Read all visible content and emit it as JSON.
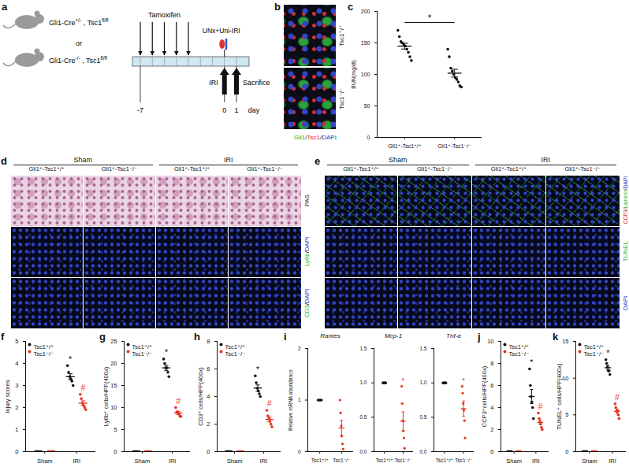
{
  "schematic": {
    "panel": "a",
    "genotypes": [
      [
        {
          "text": "Gli1-Cre"
        },
        {
          "text": "+/-",
          "sup": true
        },
        {
          "text": " , Tsc1"
        },
        {
          "text": "fl/fl",
          "sup": true
        }
      ],
      [
        {
          "text": "Gli1-Cre"
        },
        {
          "text": "-/-",
          "sup": true
        },
        {
          "text": " , Tsc1"
        },
        {
          "text": "fl/fl",
          "sup": true
        }
      ]
    ],
    "or": "or",
    "treatment": "Tamoxifen",
    "surgery": "UNx+Uni-IRI",
    "events": [
      {
        "label": "IRI",
        "day": 0
      },
      {
        "label": "Sacrifice",
        "day": 1
      }
    ],
    "day_ticks": [
      -7,
      0,
      1
    ],
    "day_label": "day"
  },
  "costain": {
    "panel": "b",
    "rows": [
      "Tsc1⁺/⁺",
      "Tsc1⁻/⁻"
    ],
    "stain": [
      {
        "text": "Gli1",
        "color": "#22b322"
      },
      {
        "text": "/",
        "color": "#222222"
      },
      {
        "text": "Tsc1",
        "color": "#e02020"
      },
      {
        "text": "/",
        "color": "#222222"
      },
      {
        "text": "DAPI",
        "color": "#2036c8"
      }
    ]
  },
  "micrographs": [
    {
      "panel": "d",
      "groups": [
        "Sham",
        "IRI"
      ],
      "columns": [
        "Gli1⁺-Tsc1⁺/⁺",
        "Gli1⁺-Tsc1⁻/⁻",
        "Gli1⁺-Tsc1⁺/⁺",
        "Gli1⁺-Tsc1⁻/⁻"
      ],
      "rows": [
        [
          {
            "text": "PAS",
            "color": "#222222"
          }
        ],
        [
          {
            "text": "Ly6b",
            "color": "#22b322"
          },
          {
            "text": "/",
            "color": "#222222"
          },
          {
            "text": "DAPI",
            "color": "#2036c8"
          }
        ],
        [
          {
            "text": "CD3",
            "color": "#22b322"
          },
          {
            "text": "/",
            "color": "#222222"
          },
          {
            "text": "DAPI",
            "color": "#2036c8"
          }
        ]
      ]
    },
    {
      "panel": "e",
      "groups": [
        "Sham",
        "IRI"
      ],
      "columns": [
        "Gli1⁺-Tsc1⁺/⁺",
        "Gli1⁺-Tsc1⁻/⁻",
        "Gli1⁺-Tsc1⁺/⁺",
        "Gli1⁺-Tsc1⁻/⁻"
      ],
      "rows": [
        [
          {
            "text": "CCP3",
            "color": "#e02020"
          },
          {
            "text": "/",
            "color": "#222222"
          },
          {
            "text": "Laminin",
            "color": "#22b322"
          },
          {
            "text": "/",
            "color": "#222222"
          },
          {
            "text": "DAPI",
            "color": "#2036c8"
          }
        ],
        [
          {
            "text": "TUNEL",
            "color": "#22b322"
          }
        ],
        [
          {
            "text": "DAPI",
            "color": "#2036c8"
          }
        ]
      ]
    }
  ],
  "chart_data": [
    {
      "type": "scatter",
      "panel": "c",
      "ylabel": "BUN(mg/dl)",
      "categories": [
        "Gli1⁺-Tsc1⁺/⁺",
        "Gli1⁺-Tsc1⁻/⁻"
      ],
      "values": [
        [
          170,
          160,
          152,
          150,
          147,
          145,
          140,
          135,
          128,
          122
        ],
        [
          140,
          128,
          110,
          105,
          100,
          95,
          92,
          88,
          82,
          80
        ]
      ],
      "color": "#111111",
      "ylim": [
        0,
        200
      ],
      "yticks": [
        0,
        50,
        100,
        150,
        200
      ],
      "annotations": [
        {
          "text": "*",
          "between": [
            0,
            1
          ]
        }
      ]
    },
    {
      "type": "scatter",
      "panel": "f",
      "ylabel": "Injury scores",
      "categories": [
        "Sham",
        "IRI"
      ],
      "series": [
        {
          "name": "Tsc1⁺/⁺",
          "color": "#111111",
          "values": [
            [
              0,
              0,
              0,
              0,
              0,
              0
            ],
            [
              3.9,
              3.6,
              3.4,
              3.3,
              3.2,
              3.0
            ]
          ]
        },
        {
          "name": "Tsc1⁻/⁻",
          "color": "#e8321e",
          "values": [
            [
              0,
              0,
              0,
              0,
              0,
              0
            ],
            [
              2.6,
              2.4,
              2.2,
              2.1,
              2.0,
              1.9
            ]
          ]
        }
      ],
      "ylim": [
        0,
        5
      ],
      "yticks": [
        0,
        1,
        2,
        3,
        4,
        5
      ],
      "legend": "top-left",
      "annotations": [
        {
          "text": "*",
          "category": "IRI",
          "series": "Tsc1⁺/⁺"
        },
        {
          "text": "#",
          "category": "IRI",
          "series": "Tsc1⁻/⁻"
        }
      ]
    },
    {
      "type": "scatter",
      "panel": "g",
      "ylabel": "Ly6b⁺ cells/HPF(400x)",
      "categories": [
        "Sham",
        "IRI"
      ],
      "series": [
        {
          "name": "Tsc1⁺/⁺",
          "color": "#111111",
          "values": [
            [
              0,
              0,
              0,
              0,
              0,
              0
            ],
            [
              21,
              20,
              19,
              19,
              18,
              17
            ]
          ]
        },
        {
          "name": "Tsc1⁻/⁻",
          "color": "#e8321e",
          "values": [
            [
              0,
              0,
              0,
              0,
              0,
              0
            ],
            [
              10,
              9,
              9,
              8.5,
              8,
              8
            ]
          ]
        }
      ],
      "ylim": [
        0,
        25
      ],
      "yticks": [
        0,
        5,
        10,
        15,
        20,
        25
      ],
      "legend": "top-left",
      "annotations": [
        {
          "text": "*",
          "category": "IRI",
          "series": "Tsc1⁺/⁺"
        },
        {
          "text": "#",
          "category": "IRI",
          "series": "Tsc1⁻/⁻"
        }
      ]
    },
    {
      "type": "scatter",
      "panel": "h",
      "ylabel": "CD3⁺ cells/HPF(400x)",
      "categories": [
        "Sham",
        "IRI"
      ],
      "series": [
        {
          "name": "Tsc1⁺/⁺",
          "color": "#111111",
          "values": [
            [
              0,
              0,
              0,
              0,
              0,
              0
            ],
            [
              5.5,
              5,
              4.6,
              4.4,
              4.2,
              4
            ]
          ]
        },
        {
          "name": "Tsc1⁻/⁻",
          "color": "#e8321e",
          "values": [
            [
              0,
              0,
              0,
              0,
              0,
              0
            ],
            [
              3,
              2.6,
              2.4,
              2.2,
              2,
              1.8
            ]
          ]
        }
      ],
      "ylim": [
        0,
        8
      ],
      "yticks": [
        0,
        2,
        4,
        6,
        8
      ],
      "legend": "top-left",
      "annotations": [
        {
          "text": "*",
          "category": "IRI",
          "series": "Tsc1⁺/⁺"
        },
        {
          "text": "#",
          "category": "IRI",
          "series": "Tsc1⁻/⁻"
        }
      ]
    },
    {
      "type": "scatter",
      "panel": "i",
      "ylabel": "Relative mRNA abundance",
      "subcharts": [
        {
          "title": "Rantes",
          "categories": [
            "Tsc1⁺/⁺",
            "Tsc1⁻/⁻"
          ],
          "values": [
            [
              1,
              1,
              1,
              1,
              1,
              1
            ],
            [
              1.0,
              0.75,
              0.5,
              0.3,
              0.15,
              0.05
            ]
          ],
          "colors": [
            "#111111",
            "#e8321e"
          ],
          "ylim": [
            0,
            2
          ],
          "yticks": [
            0,
            1,
            2
          ]
        },
        {
          "title": "Mcp-1",
          "categories": [
            "Tsc1⁺/⁺",
            "Tsc1⁻/⁻"
          ],
          "values": [
            [
              1,
              1,
              1,
              1,
              1,
              1
            ],
            [
              0.95,
              0.7,
              0.45,
              0.3,
              0.2,
              0.05
            ]
          ],
          "colors": [
            "#111111",
            "#e8321e"
          ],
          "ylim": [
            0,
            1.5
          ],
          "yticks": [
            {
              "value": 0,
              "label": "0.0"
            },
            {
              "value": 0.5,
              "label": "0.5"
            },
            {
              "value": 1,
              "label": "1.0"
            },
            {
              "value": 1.5,
              "label": "1.5"
            }
          ],
          "annotations": [
            {
              "text": "*",
              "category": "Tsc1⁻/⁻"
            }
          ]
        },
        {
          "title": "Tnf-α",
          "categories": [
            "Tsc1⁺/⁺",
            "Tsc1⁻/⁻"
          ],
          "values": [
            [
              1,
              1,
              1,
              1,
              1,
              1
            ],
            [
              0.95,
              0.85,
              0.7,
              0.6,
              0.45,
              0.2
            ]
          ],
          "colors": [
            "#111111",
            "#e8321e"
          ],
          "ylim": [
            0,
            1.5
          ],
          "yticks": [
            {
              "value": 0,
              "label": "0.0"
            },
            {
              "value": 0.5,
              "label": "0.5"
            },
            {
              "value": 1,
              "label": "1.0"
            },
            {
              "value": 1.5,
              "label": "1.5"
            }
          ],
          "annotations": [
            {
              "text": "*",
              "category": "Tsc1⁻/⁻"
            }
          ]
        }
      ]
    },
    {
      "type": "scatter",
      "panel": "j",
      "ylabel": "CCP3⁺cells/HPF(400x)",
      "categories": [
        "Sham",
        "IRI"
      ],
      "series": [
        {
          "name": "Tsc1⁺/⁺",
          "color": "#111111",
          "values": [
            [
              0,
              0,
              0,
              0,
              0,
              0
            ],
            [
              7.5,
              6,
              5,
              4.5,
              4,
              3
            ]
          ]
        },
        {
          "name": "Tsc1⁻/⁻",
          "color": "#e8321e",
          "values": [
            [
              0,
              0,
              0,
              0,
              0,
              0
            ],
            [
              3.5,
              3,
              2.7,
              2.5,
              2.2,
              2
            ]
          ]
        }
      ],
      "ylim": [
        0,
        10
      ],
      "yticks": [
        0,
        2,
        4,
        6,
        8,
        10
      ],
      "legend": "top-left",
      "annotations": [
        {
          "text": "*",
          "category": "IRI",
          "series": "Tsc1⁺/⁺"
        },
        {
          "text": "#",
          "category": "IRI",
          "series": "Tsc1⁻/⁻"
        }
      ]
    },
    {
      "type": "scatter",
      "panel": "k",
      "ylabel": "TUNEL⁺ cells/HPF(400x)",
      "categories": [
        "Sham",
        "IRI"
      ],
      "series": [
        {
          "name": "Tsc1⁺/⁺",
          "color": "#111111",
          "values": [
            [
              0,
              0,
              0,
              0,
              0,
              0
            ],
            [
              12.5,
              12,
              11.5,
              11,
              11,
              10.5
            ]
          ]
        },
        {
          "name": "Tsc1⁻/⁻",
          "color": "#e8321e",
          "values": [
            [
              0,
              0,
              0,
              0,
              0,
              0
            ],
            [
              6.5,
              6,
              5.5,
              5.5,
              5,
              4.5
            ]
          ]
        }
      ],
      "ylim": [
        0,
        15
      ],
      "yticks": [
        0,
        5,
        10,
        15
      ],
      "legend": "top-left",
      "annotations": [
        {
          "text": "*",
          "category": "IRI",
          "series": "Tsc1⁺/⁺"
        },
        {
          "text": "#",
          "category": "IRI",
          "series": "Tsc1⁻/⁻"
        }
      ]
    }
  ]
}
